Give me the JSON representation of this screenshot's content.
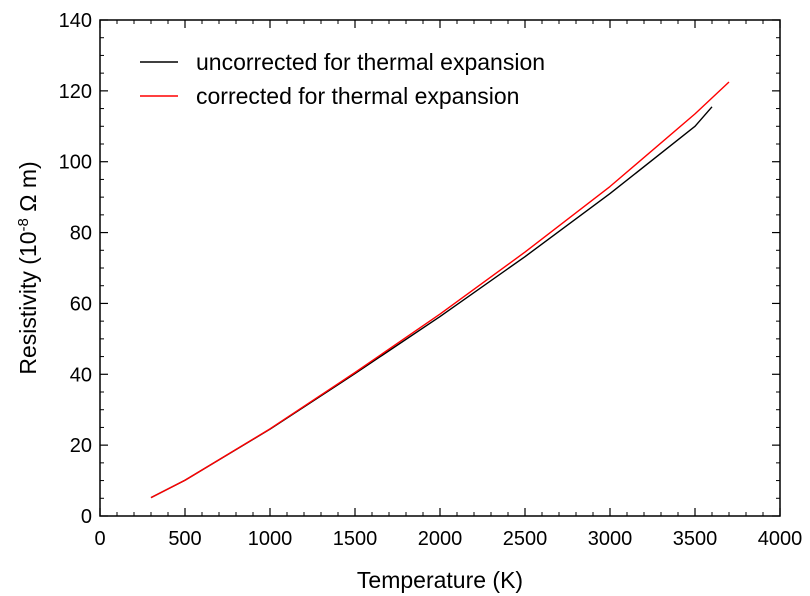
{
  "chart_data": {
    "type": "line",
    "xlabel": "Temperature (K)",
    "ylabel": {
      "prefix": "Resistivity (10",
      "exponent": "-8",
      "suffix": " Ω m)"
    },
    "xlim": [
      0,
      4000
    ],
    "ylim": [
      0,
      140
    ],
    "x_ticks": [
      0,
      500,
      1000,
      1500,
      2000,
      2500,
      3000,
      3500,
      4000
    ],
    "y_ticks": [
      0,
      20,
      40,
      60,
      80,
      100,
      120,
      140
    ],
    "x_minor_step": 100,
    "y_minor_step": 5,
    "grid": false,
    "legend_placement": "top-left",
    "series": [
      {
        "name": "uncorrected for thermal expansion",
        "color": "#000000",
        "points": [
          [
            300,
            5.2
          ],
          [
            500,
            10.1
          ],
          [
            1000,
            24.5
          ],
          [
            1500,
            40.2
          ],
          [
            2000,
            56.3
          ],
          [
            2500,
            73.2
          ],
          [
            3000,
            91.0
          ],
          [
            3500,
            110.0
          ],
          [
            3600,
            115.5
          ]
        ]
      },
      {
        "name": "corrected for thermal expansion",
        "color": "#ff0000",
        "points": [
          [
            300,
            5.2
          ],
          [
            500,
            10.1
          ],
          [
            1000,
            24.6
          ],
          [
            1500,
            40.5
          ],
          [
            2000,
            57.0
          ],
          [
            2500,
            74.5
          ],
          [
            3000,
            93.0
          ],
          [
            3500,
            113.5
          ],
          [
            3700,
            122.5
          ]
        ]
      }
    ]
  }
}
